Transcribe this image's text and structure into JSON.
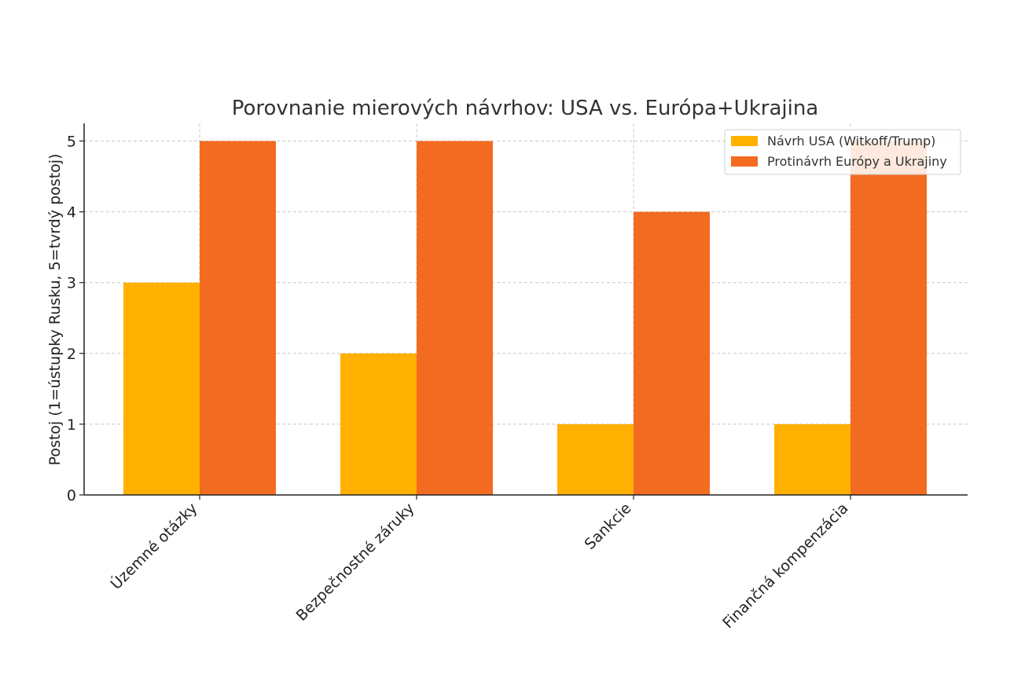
{
  "chart_data": {
    "type": "bar",
    "title": "Porovnanie mierových návrhov: USA vs. Európa+Ukrajina",
    "xlabel": "",
    "ylabel": "Postoj (1=ústupky Rusku, 5=tvrdý postoj)",
    "categories": [
      "Územné otázky",
      "Bezpečnostné záruky",
      "Sankcie",
      "Finančná kompenzácia"
    ],
    "series": [
      {
        "name": "Návrh USA (Witkoff/Trump)",
        "values": [
          3,
          2,
          1,
          1
        ],
        "color": "#FFB000"
      },
      {
        "name": "Protinávrh Európy a Ukrajiny",
        "values": [
          5,
          5,
          4,
          5
        ],
        "color": "#F26B21"
      }
    ],
    "ylim": [
      0,
      5.25
    ],
    "yticks": [
      "0",
      "1",
      "2",
      "3",
      "4",
      "5"
    ],
    "grid": true,
    "legend_position": "top-right"
  }
}
